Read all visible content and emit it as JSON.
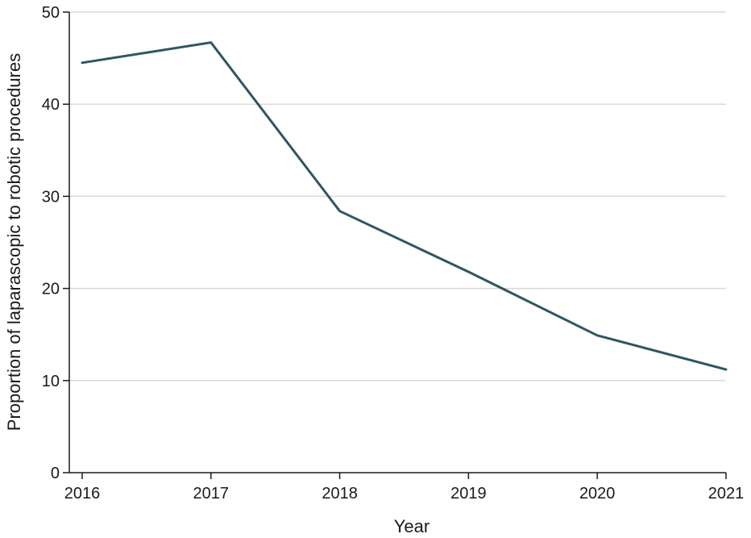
{
  "chart_data": {
    "type": "line",
    "title": "",
    "xlabel": "Year",
    "ylabel": "Proportion of laparascopic to robotic procedures",
    "x": [
      2016,
      2017,
      2018,
      2019,
      2020,
      2021
    ],
    "series": [
      {
        "values": [
          44.5,
          46.7,
          28.4,
          21.8,
          14.9,
          11.2
        ]
      }
    ],
    "xlim": [
      2016,
      2021
    ],
    "ylim": [
      0,
      50
    ],
    "xticks": [
      "2016",
      "2017",
      "2018",
      "2019",
      "2020",
      "2021"
    ],
    "yticks": [
      "0",
      "10",
      "20",
      "30",
      "40",
      "50"
    ],
    "grid": "horizontal",
    "legend": "none",
    "colors": {
      "line": "#2f5662",
      "grid": "#d9d9d9",
      "axis": "#1a1a1a"
    }
  }
}
